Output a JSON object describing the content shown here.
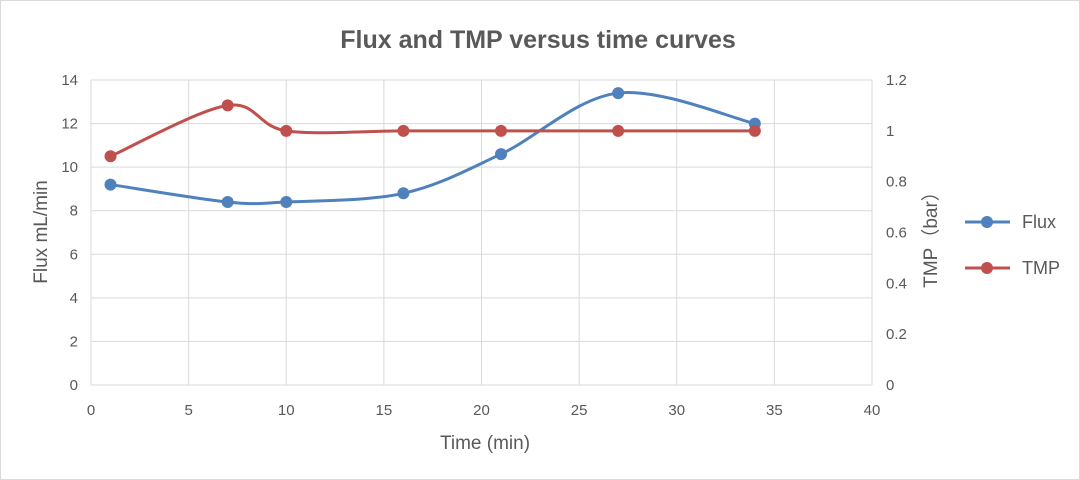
{
  "chart_data": {
    "type": "line",
    "title": "Flux and TMP versus time curves",
    "xlabel": "Time (min)",
    "ylabel": "Flux mL/min",
    "y2label": "TMP（bar）",
    "xlim": [
      0,
      40
    ],
    "ylim": [
      0,
      14
    ],
    "y2lim": [
      0,
      1.2
    ],
    "xticks": [
      "0",
      "5",
      "10",
      "15",
      "20",
      "25",
      "30",
      "35",
      "40"
    ],
    "yticks": [
      "0",
      "2",
      "4",
      "6",
      "8",
      "10",
      "12",
      "14"
    ],
    "y2ticks": [
      "0",
      "0.2",
      "0.4",
      "0.6",
      "0.8",
      "1",
      "1.2"
    ],
    "grid": true,
    "legend_position": "right",
    "smooth": true,
    "series": [
      {
        "name": "Flux",
        "axis": "left",
        "color": "#4f81bd",
        "x": [
          1,
          7,
          10,
          16,
          21,
          27,
          34
        ],
        "y": [
          9.2,
          8.4,
          8.4,
          8.8,
          10.6,
          13.4,
          12.0
        ]
      },
      {
        "name": "TMP",
        "axis": "right",
        "color": "#c0504d",
        "x": [
          1,
          7,
          10,
          16,
          21,
          27,
          34
        ],
        "y": [
          0.9,
          1.1,
          1.0,
          1.0,
          1.0,
          1.0,
          1.0
        ]
      }
    ]
  }
}
